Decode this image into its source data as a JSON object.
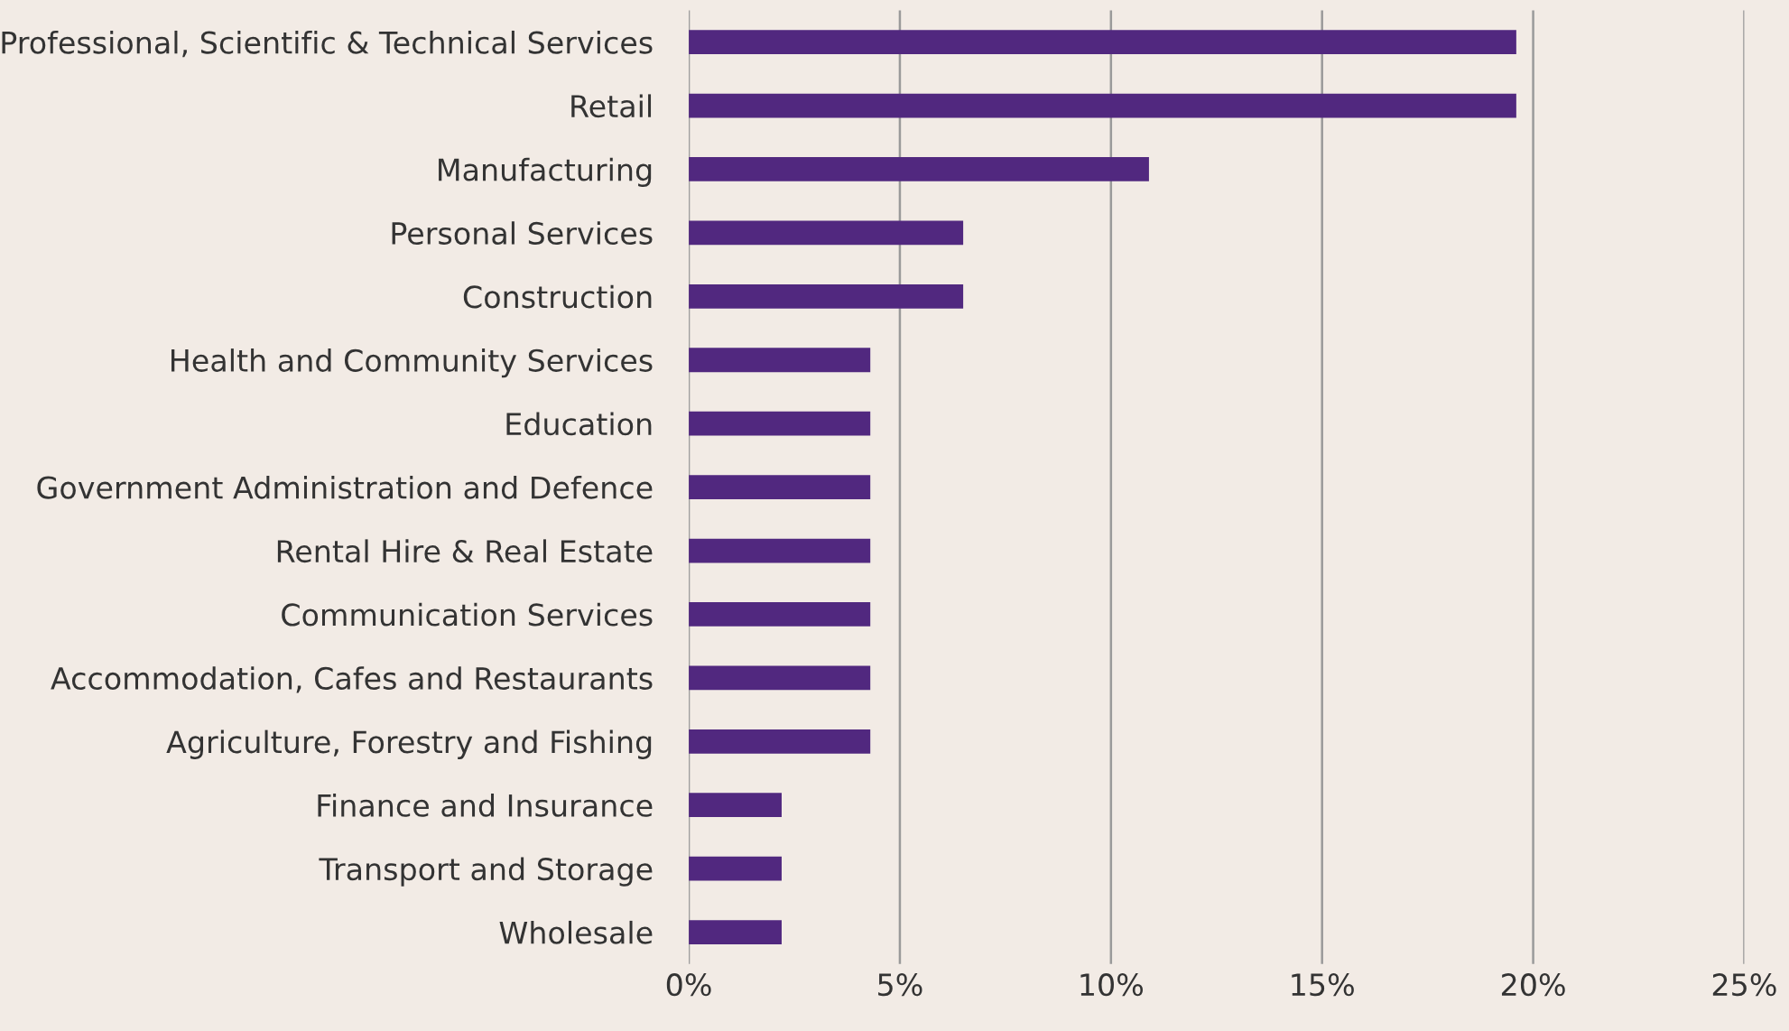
{
  "chart_data": {
    "type": "bar",
    "orientation": "horizontal",
    "categories": [
      "Professional, Scientific & Technical Services",
      "Retail",
      "Manufacturing",
      "Personal Services",
      "Construction",
      "Health and Community Services",
      "Education",
      "Government Administration and Defence",
      "Rental Hire & Real Estate",
      "Communication Services",
      "Accommodation, Cafes and Restaurants",
      "Agriculture, Forestry and Fishing",
      "Finance and Insurance",
      "Transport and Storage",
      "Wholesale"
    ],
    "values": [
      19.6,
      19.6,
      10.9,
      6.5,
      6.5,
      4.3,
      4.3,
      4.3,
      4.3,
      4.3,
      4.3,
      4.3,
      2.2,
      2.2,
      2.2
    ],
    "color": "#51287f",
    "xlim": [
      0,
      25
    ],
    "xticks": [
      {
        "value": 0,
        "label": "0%"
      },
      {
        "value": 5,
        "label": "5%"
      },
      {
        "value": 10,
        "label": "10%"
      },
      {
        "value": 15,
        "label": "15%"
      },
      {
        "value": 20,
        "label": "20%"
      },
      {
        "value": 25,
        "label": "25%"
      }
    ],
    "grid": "x"
  }
}
